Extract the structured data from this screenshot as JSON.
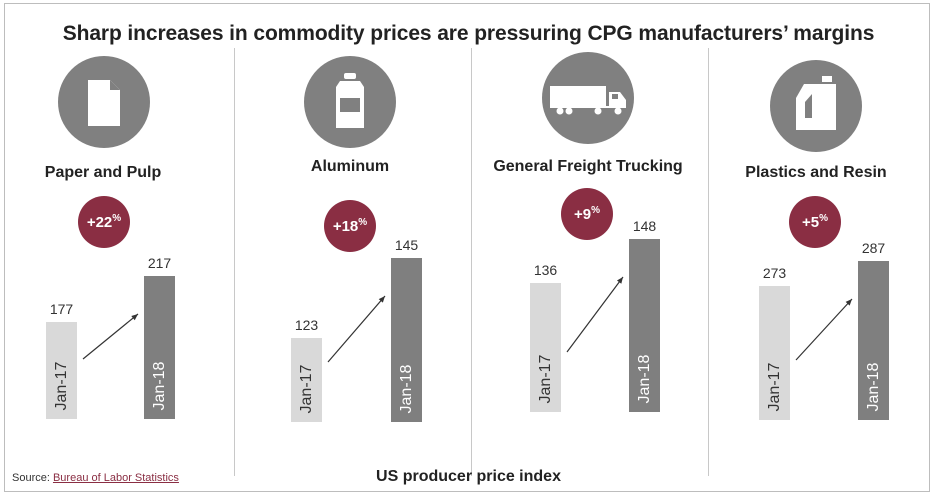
{
  "chart_data": {
    "type": "bar",
    "title": "Sharp increases in commodity prices are pressuring CPG manufacturers’ margins",
    "xlabel": "US producer price index",
    "categories": [
      "Jan-17",
      "Jan-18"
    ],
    "panels": [
      {
        "label": "Paper and Pulp",
        "icon": "document-icon",
        "change": "+22",
        "change_unit": "%",
        "values": [
          177,
          217
        ]
      },
      {
        "label": "Aluminum",
        "icon": "can-icon",
        "change": "+18",
        "change_unit": "%",
        "values": [
          123,
          145
        ]
      },
      {
        "label": "General Freight Trucking",
        "icon": "truck-icon",
        "change": "+9",
        "change_unit": "%",
        "values": [
          136,
          148
        ]
      },
      {
        "label": "Plastics and Resin",
        "icon": "jug-icon",
        "change": "+5",
        "change_unit": "%",
        "values": [
          273,
          287
        ]
      }
    ]
  },
  "source": {
    "prefix": "Source: ",
    "link_text": "Bureau of Labor Statistics"
  },
  "colors": {
    "badge": "#8a2e43",
    "bar_old": "#d9d9d9",
    "bar_new": "#7f7f7f",
    "icon_bg": "#808080"
  }
}
